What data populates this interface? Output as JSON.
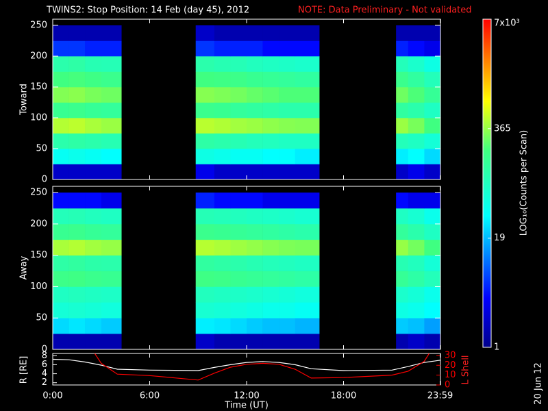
{
  "chart_data": {
    "type": "spectrogram",
    "title": "TWINS2: Stop Position: 14 Feb (day  45), 2012",
    "note": "NOTE: Data Preliminary - Not validated",
    "x_label": "Time (UT)",
    "xlim": [
      0,
      24
    ],
    "xticks": [
      {
        "value": 0,
        "label": "0:00"
      },
      {
        "value": 6,
        "label": "6:00"
      },
      {
        "value": 12,
        "label": "12:00"
      },
      {
        "value": 18,
        "label": "18:00"
      },
      {
        "value": 23.98,
        "label": "23:59"
      }
    ],
    "time_edges": [
      0,
      1,
      2,
      3,
      4.25,
      8.85,
      10,
      11,
      12,
      13,
      14,
      15,
      16.5,
      21.25,
      22,
      23,
      24
    ],
    "energy_edges": [
      0,
      25,
      50,
      75,
      100,
      125,
      150,
      175,
      200,
      225,
      250
    ],
    "colorbar": {
      "label": "LOG₁₀(Counts per Scan)",
      "log": true,
      "lim": [
        1,
        7000
      ],
      "ticks": [
        1,
        19,
        365,
        {
          "value": 7000,
          "label": "7x10³"
        }
      ]
    },
    "panels": [
      {
        "ylabel": "Toward",
        "ylim": [
          0,
          260
        ],
        "yticks": [
          0,
          50,
          100,
          150,
          200,
          250
        ],
        "z": [
          [
            2,
            2,
            2,
            2,
            null,
            3,
            2,
            2,
            2,
            2,
            2,
            2,
            null,
            2,
            3,
            2
          ],
          [
            40,
            45,
            40,
            35,
            null,
            50,
            45,
            40,
            40,
            35,
            35,
            30,
            null,
            30,
            35,
            25
          ],
          [
            110,
            120,
            110,
            100,
            null,
            120,
            110,
            100,
            90,
            85,
            80,
            80,
            null,
            90,
            80,
            60
          ],
          [
            450,
            480,
            420,
            380,
            null,
            470,
            440,
            400,
            380,
            350,
            330,
            320,
            null,
            380,
            300,
            200
          ],
          [
            160,
            170,
            150,
            140,
            null,
            170,
            160,
            140,
            130,
            120,
            110,
            110,
            null,
            130,
            110,
            80
          ],
          [
            320,
            340,
            300,
            280,
            null,
            330,
            310,
            290,
            260,
            240,
            220,
            220,
            null,
            280,
            220,
            150
          ],
          [
            200,
            210,
            190,
            170,
            null,
            200,
            190,
            180,
            160,
            150,
            140,
            130,
            null,
            170,
            130,
            90
          ],
          [
            110,
            120,
            100,
            95,
            null,
            110,
            100,
            95,
            85,
            80,
            75,
            70,
            null,
            90,
            70,
            50
          ],
          [
            6,
            6,
            5,
            5,
            null,
            6,
            5,
            5,
            5,
            4,
            4,
            4,
            null,
            5,
            4,
            3
          ],
          [
            1.5,
            1.5,
            1.5,
            1.5,
            null,
            2,
            1.5,
            1.5,
            1.5,
            1.5,
            1.5,
            1.5,
            null,
            1.5,
            1.5,
            1.5
          ]
        ]
      },
      {
        "ylabel": "Away",
        "ylim": [
          0,
          260
        ],
        "yticks": [
          0,
          50,
          100,
          150,
          200,
          250
        ],
        "z": [
          [
            1.5,
            1.5,
            1.5,
            1.5,
            null,
            2,
            1.5,
            1.5,
            1.5,
            1.5,
            1.5,
            1.5,
            null,
            1.5,
            2,
            1.5
          ],
          [
            25,
            28,
            25,
            22,
            null,
            30,
            28,
            25,
            22,
            20,
            20,
            18,
            null,
            22,
            20,
            15
          ],
          [
            60,
            65,
            60,
            55,
            null,
            65,
            60,
            55,
            50,
            45,
            45,
            40,
            null,
            50,
            45,
            35
          ],
          [
            80,
            85,
            80,
            75,
            null,
            85,
            80,
            75,
            70,
            65,
            60,
            55,
            null,
            70,
            60,
            45
          ],
          [
            180,
            190,
            170,
            160,
            null,
            190,
            180,
            160,
            150,
            140,
            130,
            120,
            null,
            150,
            120,
            90
          ],
          [
            120,
            130,
            115,
            110,
            null,
            130,
            120,
            110,
            100,
            90,
            85,
            80,
            null,
            100,
            85,
            60
          ],
          [
            420,
            450,
            400,
            370,
            null,
            460,
            430,
            390,
            360,
            330,
            310,
            300,
            null,
            370,
            290,
            200
          ],
          [
            160,
            170,
            150,
            140,
            null,
            170,
            160,
            150,
            140,
            130,
            120,
            110,
            null,
            140,
            110,
            80
          ],
          [
            90,
            95,
            85,
            80,
            null,
            95,
            90,
            85,
            80,
            75,
            70,
            65,
            null,
            80,
            65,
            45
          ],
          [
            4,
            4,
            4,
            3,
            null,
            5,
            4,
            4,
            4,
            3,
            3,
            3,
            null,
            4,
            3,
            3
          ]
        ]
      }
    ],
    "orbit": {
      "type": "line",
      "ylim": [
        1.5,
        8.5
      ],
      "yticks": [
        2,
        4,
        6,
        8
      ],
      "y2lim": [
        0,
        32
      ],
      "y2ticks": [
        0,
        10,
        20,
        30
      ],
      "series": [
        {
          "name": "R [RE]",
          "color": "#ffffff",
          "axis": "y",
          "x": [
            0,
            1,
            2,
            3,
            4,
            6,
            9,
            10,
            11,
            12,
            13,
            14,
            15,
            16,
            18,
            21,
            22,
            23,
            23.98
          ],
          "values": [
            7.2,
            7.1,
            6.6,
            5.9,
            5.0,
            4.8,
            4.7,
            5.4,
            6.0,
            6.5,
            6.7,
            6.5,
            6.0,
            5.1,
            4.7,
            4.8,
            5.6,
            6.5,
            7.0
          ]
        },
        {
          "name": "L Shell",
          "color": "#ff0000",
          "axis": "y2",
          "x": [
            2.6,
            3,
            4,
            6,
            9,
            10,
            11,
            12,
            13,
            14,
            15,
            16,
            18,
            21,
            22,
            23,
            23.3
          ],
          "values": [
            32,
            22,
            11,
            9.5,
            5,
            12,
            18,
            21,
            22,
            21,
            16,
            7,
            7.5,
            10,
            14,
            24,
            32
          ]
        }
      ]
    },
    "date_stamp": "20 Jun 12"
  }
}
